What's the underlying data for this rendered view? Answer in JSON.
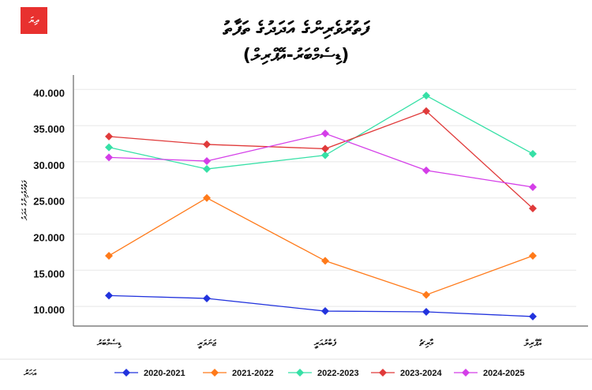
{
  "logo": {
    "text": "ދިޔަ",
    "color": "#e8312f"
  },
  "chart_data": {
    "type": "line",
    "title": "ފަތުރުވެރިންގެ އަދަދުގެ ތަފާތު",
    "subtitle": "(ޑިސެމްބަރު-އޭޕްރިލް)",
    "xlabel": "",
    "ylabel": "ފަތުރުވެރިންގެ އަދަދު",
    "categories": [
      "ޑިސެމްބަރު",
      "ޖަނަވަރީ",
      "ފެބްރުއަރީ",
      "މާރިޗު",
      "އޭޕްރިލް"
    ],
    "yticks": [
      "10.000",
      "15.000",
      "20.000",
      "25.000",
      "30.000",
      "35.000",
      "40.000"
    ],
    "ytick_values": [
      10000,
      15000,
      20000,
      25000,
      30000,
      35000,
      40000
    ],
    "ylim": [
      7300,
      42000
    ],
    "grid": true,
    "legend_title": "އަހަރު",
    "legend_position": "bottom",
    "series": [
      {
        "name": "2020-2021",
        "color": "#2233dd",
        "values": [
          11500,
          11100,
          9350,
          9250,
          8600
        ]
      },
      {
        "name": "2021-2022",
        "color": "#ff7a1a",
        "values": [
          17000,
          25000,
          16300,
          11600,
          17000
        ]
      },
      {
        "name": "2022-2023",
        "color": "#36e0a6",
        "values": [
          32000,
          29000,
          30900,
          39150,
          31100
        ]
      },
      {
        "name": "2023-2024",
        "color": "#e03a3a",
        "values": [
          33500,
          32400,
          31800,
          37000,
          23550
        ]
      },
      {
        "name": "2024-2025",
        "color": "#d43ee8",
        "values": [
          30600,
          30100,
          33900,
          28800,
          26500
        ]
      }
    ]
  }
}
